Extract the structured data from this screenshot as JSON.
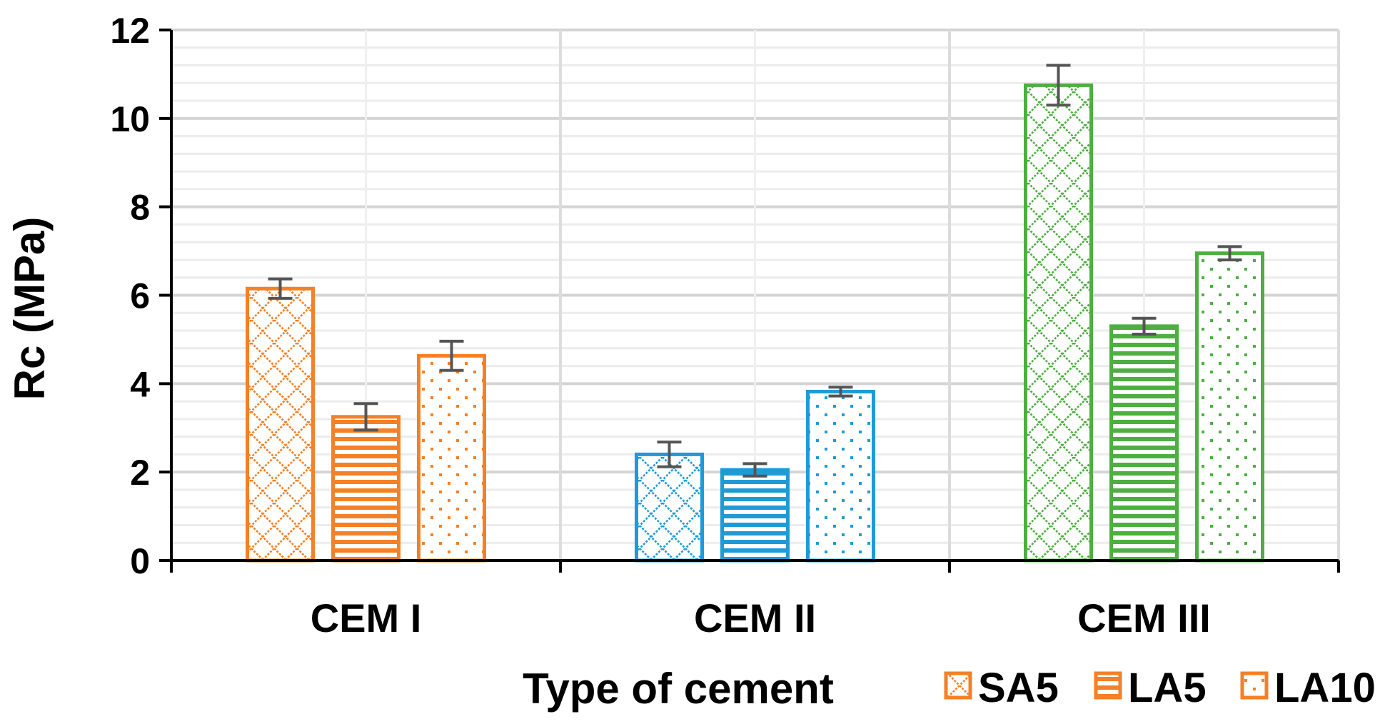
{
  "chart_data": {
    "type": "bar",
    "title": "",
    "xlabel": "Type of cement",
    "ylabel": "Rc (MPa)",
    "ylim": [
      0,
      12
    ],
    "yticks": [
      0,
      2,
      4,
      6,
      8,
      10,
      12
    ],
    "yticklabels": [
      "0",
      "2",
      "4",
      "6",
      "8",
      "10",
      "12"
    ],
    "categories": [
      "CEM I",
      "CEM II",
      "CEM III"
    ],
    "category_colors": [
      "#F58025",
      "#1E9BD7",
      "#4CAF3F"
    ],
    "grid": true,
    "legend_position": "bottom-right",
    "series": [
      {
        "name": "SA5",
        "pattern": "crosshatch",
        "values": [
          6.15,
          2.4,
          10.75
        ],
        "errors": [
          0.22,
          0.28,
          0.45
        ]
      },
      {
        "name": "LA5",
        "pattern": "horizontal",
        "values": [
          3.25,
          2.05,
          5.3
        ],
        "errors": [
          0.3,
          0.14,
          0.18
        ]
      },
      {
        "name": "LA10",
        "pattern": "dots",
        "values": [
          4.63,
          3.82,
          6.95
        ],
        "errors": [
          0.33,
          0.1,
          0.15
        ]
      }
    ]
  }
}
